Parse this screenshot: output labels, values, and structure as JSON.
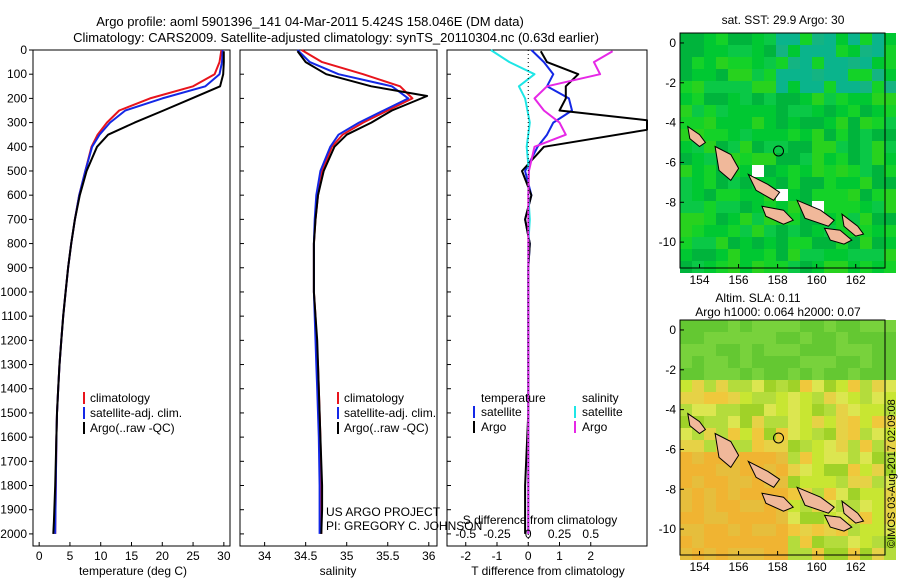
{
  "header": {
    "title_line1": "Argo profile: aoml 5901396_141 04-Mar-2011 5.424S 158.046E (DM data)",
    "title_line2": "Climatology: CARS2009. Satellite-adjusted climatology: synTS_20110304.nc (0.63d earlier)"
  },
  "project": {
    "line1": "US ARGO PROJECT",
    "line2": "PI: GREGORY C. JOHNSON"
  },
  "credit": "©IMOS 03-Aug-2017 02:09:08",
  "colors": {
    "climatology": "#e8141c",
    "satellite": "#1428e6",
    "argo": "#000000",
    "salinity_satellite": "#1ee6e6",
    "salinity_argo": "#e628e6"
  },
  "chart_data": [
    {
      "type": "line",
      "id": "temperature",
      "xlabel": "temperature (deg C)",
      "xlim": [
        -1,
        31
      ],
      "ylim": [
        2050,
        0
      ],
      "xticks": [
        0,
        5,
        10,
        15,
        20,
        25,
        30
      ],
      "yticks": [
        0,
        100,
        200,
        300,
        400,
        500,
        600,
        700,
        800,
        900,
        1000,
        1100,
        1200,
        1300,
        1400,
        1500,
        1600,
        1700,
        1800,
        1900,
        2000
      ],
      "legend": [
        "climatology",
        "satellite-adj. clim.",
        "Argo(..raw -QC)"
      ],
      "series": [
        {
          "name": "climatology",
          "x": [
            29.6,
            29.3,
            28.5,
            25,
            18,
            13,
            11,
            9.5,
            8.5,
            7.5,
            6.5,
            5.8,
            5.2,
            4.7,
            4.3,
            3.9,
            3.6,
            3.3,
            3.1,
            2.9,
            2.8,
            2.7,
            2.6
          ],
          "y": [
            0,
            50,
            100,
            150,
            200,
            250,
            300,
            350,
            400,
            500,
            600,
            700,
            800,
            900,
            1000,
            1100,
            1200,
            1300,
            1400,
            1500,
            1600,
            1800,
            2000
          ]
        },
        {
          "name": "satellite-adj. clim.",
          "x": [
            29.8,
            29.7,
            29.3,
            27,
            20,
            14,
            11.5,
            9.8,
            8.6,
            7.5,
            6.5,
            5.8,
            5.2,
            4.7,
            4.3,
            3.9,
            3.6,
            3.3,
            3.1,
            2.9,
            2.8,
            2.7,
            2.6
          ],
          "y": [
            0,
            50,
            100,
            150,
            200,
            250,
            300,
            350,
            400,
            500,
            600,
            700,
            800,
            900,
            1000,
            1100,
            1200,
            1300,
            1400,
            1500,
            1600,
            1800,
            2000
          ]
        },
        {
          "name": "Argo(..raw -QC)",
          "x": [
            30,
            30,
            29.9,
            29.4,
            24.8,
            20.2,
            15.5,
            11.2,
            9.4,
            7.7,
            6.6,
            5.8,
            5.2,
            4.7,
            4.3,
            3.9,
            3.6,
            3.3,
            3.1,
            2.9,
            2.8,
            2.6,
            2.4,
            2.3
          ],
          "y": [
            5,
            50,
            100,
            150,
            200,
            250,
            300,
            350,
            400,
            500,
            600,
            700,
            800,
            900,
            1000,
            1100,
            1200,
            1300,
            1400,
            1500,
            1600,
            1800,
            1950,
            2000
          ]
        }
      ]
    },
    {
      "type": "line",
      "id": "salinity",
      "xlabel": "salinity",
      "xlim": [
        33.7,
        36.1
      ],
      "ylim": [
        2050,
        0
      ],
      "xticks": [
        34,
        34.5,
        35,
        35.5,
        36
      ],
      "legend": [
        "climatology",
        "satellite-adj. clim.",
        "Argo(..raw -QC)"
      ],
      "series": [
        {
          "name": "climatology",
          "x": [
            34.45,
            34.7,
            35.2,
            35.65,
            35.8,
            35.5,
            35.2,
            34.95,
            34.82,
            34.7,
            34.65,
            34.62,
            34.6,
            34.6,
            34.6,
            34.62,
            34.63,
            34.65,
            34.66,
            34.67,
            34.68,
            34.69,
            34.69
          ],
          "y": [
            0,
            50,
            100,
            150,
            200,
            250,
            300,
            350,
            400,
            500,
            600,
            700,
            800,
            900,
            1000,
            1100,
            1200,
            1300,
            1400,
            1500,
            1600,
            1800,
            2000
          ]
        },
        {
          "name": "satellite-adj. clim.",
          "x": [
            34.4,
            34.55,
            34.9,
            35.55,
            35.75,
            35.45,
            35.15,
            34.9,
            34.8,
            34.68,
            34.63,
            34.61,
            34.6,
            34.6,
            34.6,
            34.61,
            34.62,
            34.63,
            34.64,
            34.65,
            34.66,
            34.67,
            34.67
          ],
          "y": [
            0,
            50,
            100,
            150,
            200,
            250,
            300,
            350,
            400,
            500,
            600,
            700,
            800,
            900,
            1000,
            1100,
            1200,
            1300,
            1400,
            1500,
            1600,
            1800,
            2000
          ]
        },
        {
          "name": "Argo(..raw -QC)",
          "x": [
            34.4,
            34.5,
            34.75,
            35.3,
            35.98,
            35.55,
            35.3,
            35.0,
            34.85,
            34.72,
            34.65,
            34.62,
            34.6,
            34.6,
            34.6,
            34.62,
            34.64,
            34.65,
            34.66,
            34.67,
            34.68,
            34.7,
            34.7,
            34.69
          ],
          "y": [
            5,
            50,
            100,
            150,
            190,
            250,
            300,
            350,
            400,
            500,
            600,
            700,
            800,
            900,
            1000,
            1100,
            1200,
            1300,
            1400,
            1500,
            1600,
            1800,
            1900,
            2000
          ]
        }
      ]
    },
    {
      "type": "line",
      "id": "differences",
      "xlabel": "T difference from climatology",
      "xlabel_top": "S difference from climatology",
      "xlim": [
        -2.6,
        3.8
      ],
      "ylim": [
        2050,
        0
      ],
      "xticks_T": [
        -2,
        -1,
        0,
        1,
        2
      ],
      "xticks_S": [
        -0.5,
        -0.25,
        0,
        0.25,
        0.5
      ],
      "xticklabels_S": [
        "-0.5",
        "-0.25",
        "0",
        "0.25",
        "0.5"
      ],
      "legend_temperature": {
        "title": "temperature",
        "items": [
          "satellite",
          "Argo"
        ]
      },
      "legend_salinity": {
        "title": "salinity",
        "items": [
          "satellite",
          "Argo"
        ]
      },
      "series": [
        {
          "name": "temperature satellite",
          "x": [
            0.1,
            0.5,
            0.8,
            0.6,
            1.3,
            1.4,
            0.8,
            0.6,
            0.3,
            -0.1,
            0.1,
            -0.1,
            0.05,
            0,
            0,
            0,
            0,
            0,
            0,
            0,
            0,
            0,
            0
          ],
          "y": [
            0,
            50,
            100,
            150,
            200,
            250,
            300,
            350,
            400,
            500,
            600,
            700,
            800,
            900,
            1000,
            1100,
            1200,
            1300,
            1400,
            1500,
            1600,
            1800,
            2000
          ]
        },
        {
          "name": "temperature Argo",
          "x": [
            0.4,
            0.6,
            1.6,
            1.2,
            1.2,
            1.0,
            3.8,
            3.8,
            0.5,
            -0.2,
            0.1,
            -0.1,
            0.05,
            0,
            0,
            0,
            0,
            0,
            0,
            0,
            -0.1,
            -0.1
          ],
          "y": [
            5,
            50,
            100,
            150,
            200,
            250,
            290,
            330,
            400,
            500,
            600,
            700,
            800,
            900,
            1000,
            1100,
            1200,
            1300,
            1400,
            1500,
            1800,
            2000
          ]
        },
        {
          "name": "salinity satellite",
          "x": [
            -1.2,
            -0.6,
            0.2,
            -0.3,
            -0.1,
            0.05,
            -0.05,
            0.02,
            0.0,
            0.05,
            0.0,
            0.0,
            0.0,
            0.0,
            0.0,
            0.0,
            0.0,
            0.0,
            0.0
          ],
          "y": [
            0,
            50,
            100,
            150,
            200,
            300,
            400,
            500,
            600,
            700,
            800,
            900,
            1000,
            1200,
            1400,
            1600,
            1800,
            1900,
            2000
          ]
        },
        {
          "name": "salinity Argo",
          "x": [
            2.7,
            2.1,
            2.3,
            0.6,
            0.2,
            0.5,
            1.0,
            1.2,
            0.2,
            0.02,
            0.0,
            0.0,
            0.0,
            0.0,
            0.0,
            0.0,
            0.0,
            0.0
          ],
          "y": [
            5,
            50,
            100,
            150,
            200,
            250,
            300,
            350,
            400,
            500,
            600,
            800,
            1000,
            1200,
            1400,
            1600,
            1800,
            2000
          ]
        }
      ]
    },
    {
      "type": "heatmap",
      "id": "sst_map",
      "title": "sat. SST: 29.9 Argo: 30",
      "xlim": [
        153,
        163.5
      ],
      "ylim": [
        -11.3,
        0.5
      ],
      "xticks": [
        154,
        156,
        158,
        160,
        162
      ],
      "yticks": [
        0,
        -2,
        -4,
        -6,
        -8,
        -10
      ],
      "argo_position": {
        "lon": 158.046,
        "lat": -5.424
      }
    },
    {
      "type": "heatmap",
      "id": "sla_map",
      "title": "Altim. SLA: 0.11",
      "subtitle": "Argo h1000: 0.064 h2000: 0.07",
      "xlim": [
        153,
        163.5
      ],
      "ylim": [
        -11.3,
        0.5
      ],
      "xticks": [
        154,
        156,
        158,
        160,
        162
      ],
      "yticks": [
        0,
        -2,
        -4,
        -6,
        -8,
        -10
      ],
      "argo_position": {
        "lon": 158.046,
        "lat": -5.424
      }
    }
  ]
}
